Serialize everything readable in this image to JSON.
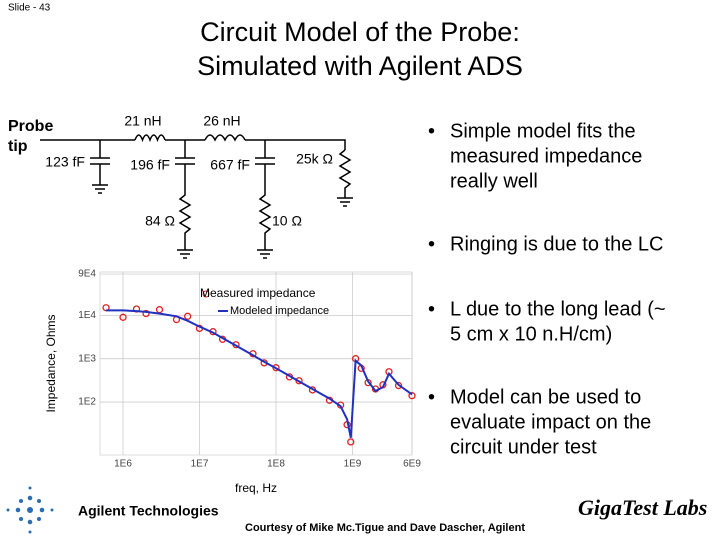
{
  "slide_number": "Slide - 43",
  "title": [
    "Circuit Model of the Probe:",
    "Simulated with Agilent ADS"
  ],
  "circuit": {
    "probe": [
      "Probe",
      "tip"
    ],
    "labels": [
      "21 nH",
      "26 nH",
      "123 fF",
      "196 fF",
      "667 fF",
      "25k Ω",
      "84 Ω",
      "10 Ω"
    ]
  },
  "bullets": [
    [
      "Simple model fits the",
      "measured impedance",
      "really well"
    ],
    [
      "Ringing is due to the LC"
    ],
    [
      "L due to the long lead  (~",
      "5 cm x 10 n.H/cm)"
    ],
    [
      "Model can be used to",
      "evaluate impact on the",
      "circuit under test"
    ]
  ],
  "footer": {
    "company": "Agilent Technologies",
    "credit": "Courtesy of Mike Mc.Tigue and Dave Dascher, Agilent",
    "partner": "GigaTest Labs"
  },
  "chart_data": {
    "type": "scatter",
    "x_label": "freq, Hz",
    "y_label": "Impedance, Ohms",
    "xscale": "log",
    "yscale": "log",
    "grid": true,
    "xlim": [
      500000,
      6000000000
    ],
    "ylim": [
      6,
      100000
    ],
    "xticks": [
      {
        "value": 1000000,
        "label": "1E6"
      },
      {
        "value": 10000000,
        "label": "1E7"
      },
      {
        "value": 100000000,
        "label": "1E8"
      },
      {
        "value": 1000000000,
        "label": "1E9"
      },
      {
        "value": 6000000000,
        "label": "6E9"
      }
    ],
    "yticks": [
      {
        "value": 90000,
        "label": "9E4"
      },
      {
        "value": 10000,
        "label": "1E4"
      },
      {
        "value": 1000,
        "label": "1E3"
      },
      {
        "value": 100,
        "label": "1E2"
      }
    ],
    "x": [
      600000,
      1000000,
      1500000,
      2000000,
      3000000,
      5000000,
      7000000,
      10000000,
      15000000,
      20000000,
      30000000,
      50000000,
      70000000,
      100000000,
      150000000,
      200000000,
      300000000,
      500000000,
      700000000,
      850000000,
      950000000,
      1100000000,
      1300000000,
      1600000000,
      2000000000,
      2500000000,
      3000000000,
      4000000000,
      6000000000
    ],
    "series": [
      {
        "name": "Measured impedance",
        "color": "#e02020",
        "marker": "circle",
        "values": [
          15000,
          9000,
          14000,
          11000,
          13500,
          8000,
          9500,
          5000,
          4200,
          2800,
          2100,
          1300,
          800,
          620,
          380,
          310,
          190,
          110,
          85,
          30,
          12,
          1000,
          600,
          280,
          200,
          250,
          500,
          240,
          140
        ]
      },
      {
        "name": "Modeled impedance",
        "color": "#2030c0",
        "marker": "line",
        "values": [
          13000,
          13000,
          12500,
          12000,
          11000,
          9500,
          7500,
          5500,
          4000,
          3000,
          2000,
          1200,
          850,
          600,
          400,
          300,
          200,
          120,
          80,
          40,
          15,
          900,
          700,
          300,
          180,
          220,
          450,
          250,
          150
        ]
      }
    ]
  }
}
